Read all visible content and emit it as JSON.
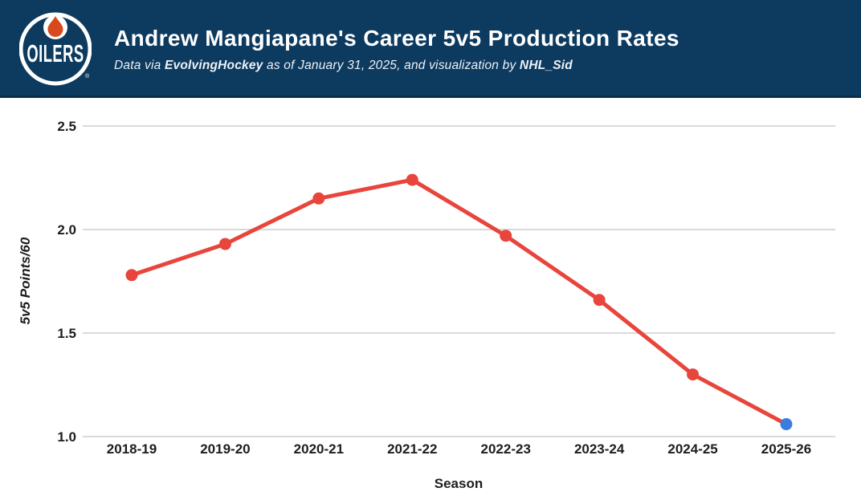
{
  "header": {
    "title": "Andrew Mangiapane's Career 5v5 Production Rates",
    "subtitle": {
      "prefix": "Data via ",
      "source": "EvolvingHockey",
      "middle": " as of January 31, 2025, and visualization by ",
      "author": "NHL_Sid"
    },
    "logo": {
      "team_word": "OILERS",
      "registered_mark": "®",
      "navy": "#0d3a5f",
      "drop_orange": "#d84a1e"
    },
    "colors": {
      "background": "#0d3a5f",
      "bottom_border": "#0b2e4c"
    }
  },
  "chart_data": {
    "type": "line",
    "title": "",
    "categories": [
      "2018-19",
      "2019-20",
      "2020-21",
      "2021-22",
      "2022-23",
      "2023-24",
      "2024-25",
      "2025-26"
    ],
    "values": [
      1.78,
      1.93,
      2.15,
      2.24,
      1.97,
      1.66,
      1.3,
      1.06
    ],
    "xlabel": "Season",
    "ylabel": "5v5 Points/60",
    "ylim": [
      1.0,
      2.5
    ],
    "yticks": [
      1.0,
      1.5,
      2.0,
      2.5
    ],
    "grid": "horizontal-only",
    "legend": "none",
    "line_color": "#e8453c",
    "point_color": "#e8453c",
    "last_point_color": "#3b7dde",
    "gridline_color": "#d9d9d9",
    "tick_label_color": "#1d1d1d"
  }
}
